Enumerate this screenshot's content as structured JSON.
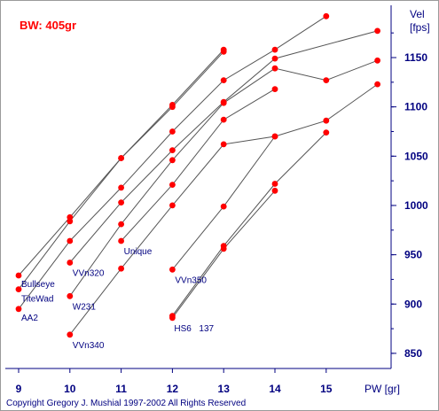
{
  "colors": {
    "point": "#ff0000",
    "line": "#555555",
    "axis": "#000080",
    "bw_text": "#ff0000"
  },
  "chart_data": {
    "type": "line",
    "title": "BW: 405gr",
    "xlabel": "PW [gr]",
    "ylabel": "Vel [fps]",
    "xlim": [
      9,
      16
    ],
    "ylim": [
      830,
      1200
    ],
    "x_ticks": [
      9,
      10,
      11,
      12,
      13,
      14,
      15
    ],
    "y_ticks": [
      850,
      900,
      950,
      1000,
      1050,
      1100,
      1150
    ],
    "grid": false,
    "legend": "none",
    "series": [
      {
        "name": "Bullseye",
        "points": [
          [
            9,
            929
          ],
          [
            10,
            988
          ],
          [
            11,
            1048
          ],
          [
            12,
            1102
          ],
          [
            13,
            1158
          ]
        ]
      },
      {
        "name": "TiteWad",
        "points": [
          [
            9,
            915
          ],
          [
            10,
            984
          ],
          [
            11,
            1048
          ],
          [
            12,
            1100
          ],
          [
            13,
            1156
          ]
        ]
      },
      {
        "name": "AA2",
        "points": [
          [
            9,
            895
          ],
          [
            10,
            964
          ],
          [
            11,
            1018
          ],
          [
            12,
            1075
          ],
          [
            13,
            1127
          ],
          [
            14,
            1158
          ],
          [
            15,
            1192
          ]
        ]
      },
      {
        "name": "VVn320",
        "points": [
          [
            10,
            942
          ],
          [
            11,
            1003
          ],
          [
            12,
            1056
          ],
          [
            13,
            1105
          ],
          [
            14,
            1149
          ],
          [
            16,
            1177
          ]
        ]
      },
      {
        "name": "W231",
        "points": [
          [
            10,
            908
          ],
          [
            11,
            981
          ],
          [
            12,
            1046
          ],
          [
            13,
            1104
          ],
          [
            14,
            1139
          ],
          [
            15,
            1127
          ],
          [
            16,
            1147
          ]
        ]
      },
      {
        "name": "Unique",
        "points": [
          [
            11,
            964
          ],
          [
            12,
            1021
          ],
          [
            13,
            1087
          ],
          [
            14,
            1118
          ]
        ]
      },
      {
        "name": "VVn340",
        "points": [
          [
            10,
            869
          ],
          [
            11,
            936
          ],
          [
            12,
            1000
          ],
          [
            13,
            1062
          ],
          [
            14,
            1070
          ],
          [
            15,
            1086
          ],
          [
            16,
            1123
          ]
        ]
      },
      {
        "name": "VVn350",
        "points": [
          [
            12,
            935
          ],
          [
            13,
            999
          ],
          [
            14,
            1070
          ]
        ]
      },
      {
        "name": "HS6",
        "points": [
          [
            12,
            888
          ],
          [
            13,
            959
          ],
          [
            14,
            1022
          ],
          [
            15,
            1074
          ]
        ]
      },
      {
        "name": "N137",
        "points": [
          [
            12,
            886
          ],
          [
            13,
            956
          ],
          [
            14,
            1015
          ]
        ]
      }
    ]
  },
  "labels": {
    "Bullseye": "Bullseye",
    "TiteWad": "TiteWad",
    "AA2": "AA2",
    "VVn320": "VVn320",
    "W231": "W231",
    "Unique": "Unique",
    "VVn340": "VVn340",
    "VVn350": "VVn350",
    "HS6": "HS6",
    "N137": "137"
  },
  "footer": {
    "copyright": "Copyright Gregory J. Mushial 1997-2002   All Rights Reserved"
  }
}
